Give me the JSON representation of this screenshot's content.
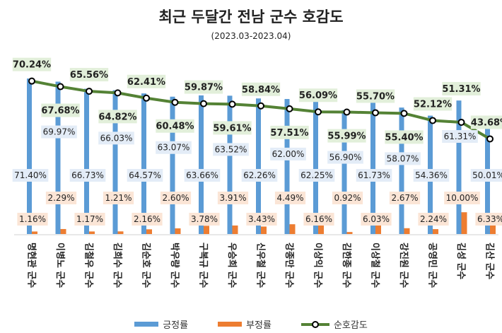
{
  "chart_data": {
    "type": "bar",
    "title": "최근 두달간 전남 군수 호감도",
    "subtitle": "(2023.03-2023.04)",
    "categories": [
      "명현관 군수",
      "이병노 군수",
      "김철우 군수",
      "김희수 군수",
      "김순호 군수",
      "박우량 군수",
      "구복규 군수",
      "우승희 군수",
      "신우철 군수",
      "강종만 군수",
      "이상익 군수",
      "김한종 군수",
      "이상철 군수",
      "강진원 군수",
      "공영민 군수",
      "김성 군수",
      "김산 군수"
    ],
    "series": [
      {
        "name": "긍정률",
        "type": "bar",
        "color": "#5b9bd5",
        "values": [
          71.4,
          69.97,
          66.73,
          66.03,
          64.57,
          63.07,
          63.66,
          63.52,
          62.26,
          62.0,
          62.25,
          56.9,
          61.73,
          58.07,
          54.36,
          61.31,
          50.01
        ]
      },
      {
        "name": "부정률",
        "type": "bar",
        "color": "#ed7d31",
        "values": [
          1.16,
          2.29,
          1.17,
          1.21,
          2.16,
          2.6,
          3.78,
          3.91,
          3.43,
          4.49,
          6.16,
          0.92,
          6.03,
          2.67,
          2.24,
          10.0,
          6.33
        ]
      },
      {
        "name": "순호감도",
        "type": "line",
        "color": "#548235",
        "values": [
          70.24,
          67.68,
          65.56,
          64.82,
          62.41,
          60.48,
          59.87,
          59.61,
          58.84,
          57.51,
          56.09,
          55.99,
          55.7,
          55.4,
          52.12,
          51.31,
          43.68
        ]
      }
    ],
    "value_format": "%",
    "legend": "bottom",
    "grid": false
  }
}
